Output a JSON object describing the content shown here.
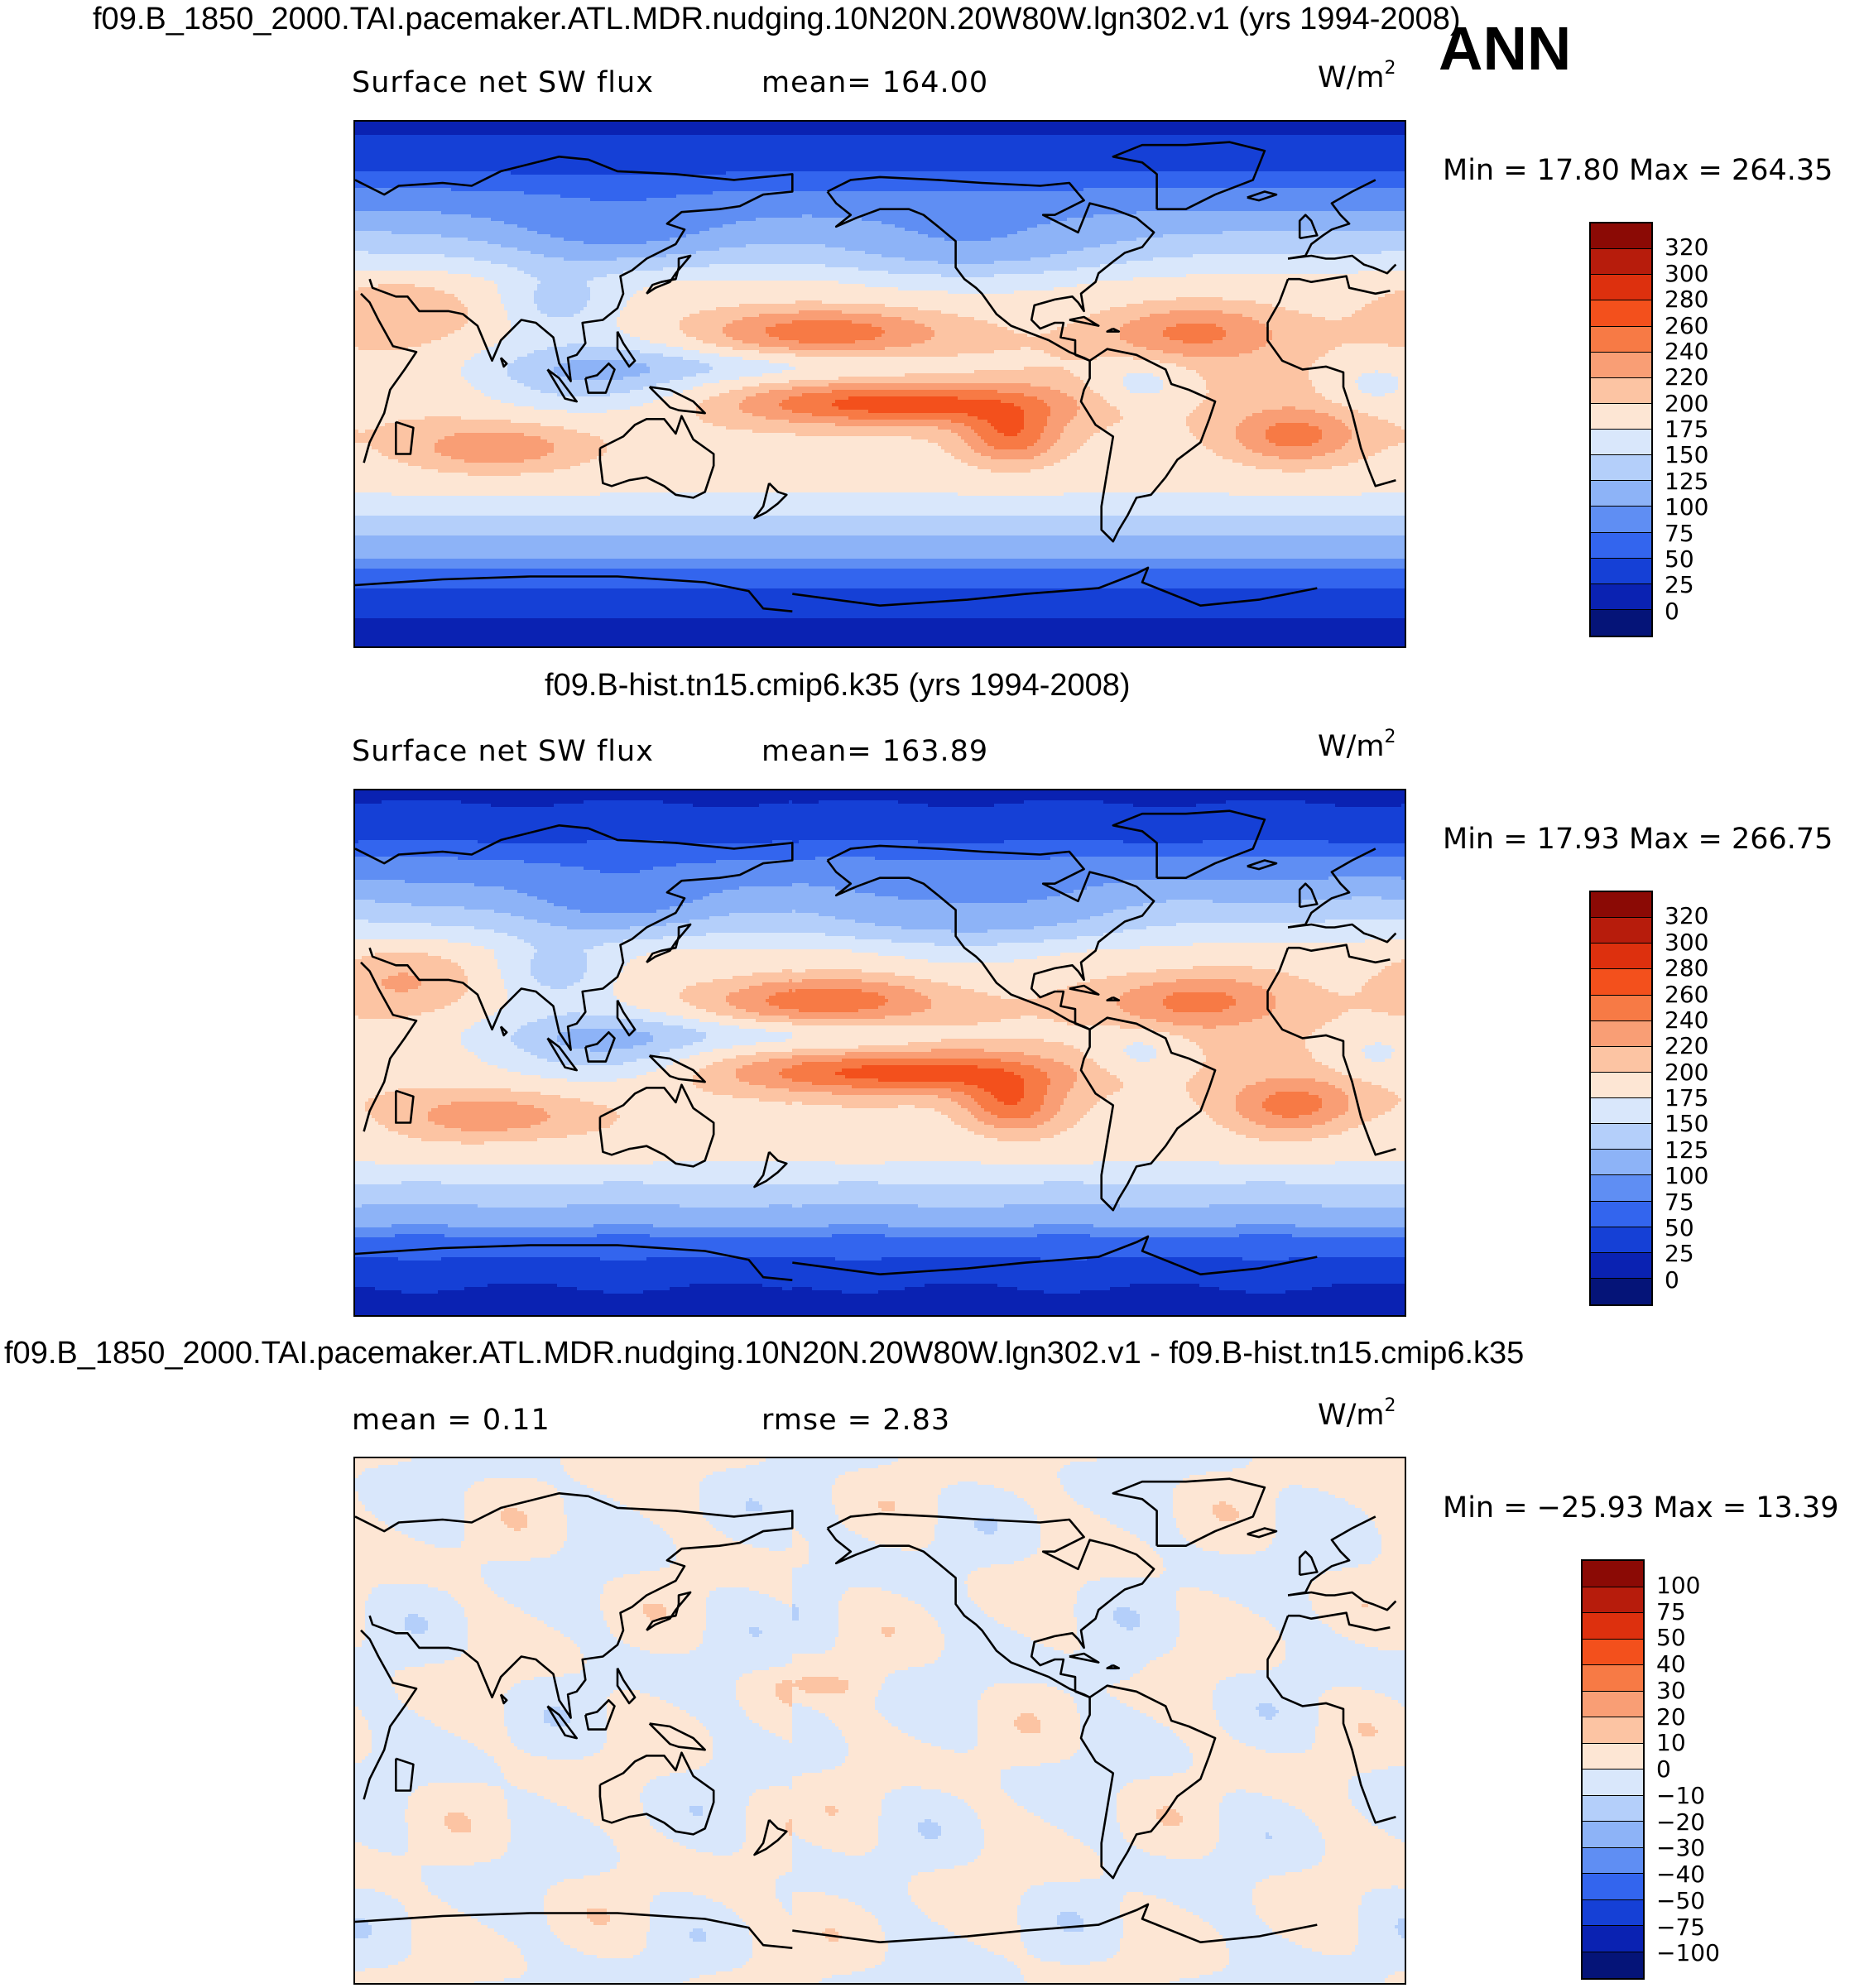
{
  "season": "ANN",
  "chart_data": [
    {
      "type": "heatmap",
      "title": "f09.B_1850_2000.TAI.pacemaker.ATL.MDR.nudging.10N20N.20W80W.lgn302.v1 (yrs 1994-2008)",
      "field": "Surface net SW flux",
      "stat": "mean= 164.00",
      "units_base": "W/m",
      "units_exp": "2",
      "minmax": "Min =   17.80 Max = 264.35",
      "min": 17.8,
      "max": 264.35,
      "mean": 164.0,
      "levels": [
        "320",
        "300",
        "280",
        "260",
        "240",
        "220",
        "200",
        "175",
        "150",
        "125",
        "100",
        "75",
        "50",
        "25",
        "0"
      ],
      "colors": [
        "#8b0a05",
        "#b71c0c",
        "#dd300e",
        "#f3501c",
        "#f77a45",
        "#f99e75",
        "#fcc4a3",
        "#fde6d4",
        "#d9e7fb",
        "#b4cffa",
        "#8db3f7",
        "#5f8ef3",
        "#3365ee",
        "#1540d6",
        "#0a22b2",
        "#051478"
      ]
    },
    {
      "type": "heatmap",
      "title": "f09.B-hist.tn15.cmip6.k35 (yrs 1994-2008)",
      "field": "Surface net SW flux",
      "stat": "mean= 163.89",
      "units_base": "W/m",
      "units_exp": "2",
      "minmax": "Min =   17.93 Max = 266.75",
      "min": 17.93,
      "max": 266.75,
      "mean": 163.89,
      "levels": [
        "320",
        "300",
        "280",
        "260",
        "240",
        "220",
        "200",
        "175",
        "150",
        "125",
        "100",
        "75",
        "50",
        "25",
        "0"
      ],
      "colors": [
        "#8b0a05",
        "#b71c0c",
        "#dd300e",
        "#f3501c",
        "#f77a45",
        "#f99e75",
        "#fcc4a3",
        "#fde6d4",
        "#d9e7fb",
        "#b4cffa",
        "#8db3f7",
        "#5f8ef3",
        "#3365ee",
        "#1540d6",
        "#0a22b2",
        "#051478"
      ]
    },
    {
      "type": "heatmap",
      "title": "f09.B_1850_2000.TAI.pacemaker.ATL.MDR.nudging.10N20N.20W80W.lgn302.v1 - f09.B-hist.tn15.cmip6.k35",
      "field": "mean =    0.11",
      "stat": "rmse =    2.83",
      "units_base": "W/m",
      "units_exp": "2",
      "minmax": "Min = −25.93 Max =   13.39",
      "min": -25.93,
      "max": 13.39,
      "mean": 0.11,
      "rmse": 2.83,
      "levels": [
        "100",
        "75",
        "50",
        "40",
        "30",
        "20",
        "10",
        "0",
        "−10",
        "−20",
        "−30",
        "−40",
        "−50",
        "−75",
        "−100"
      ],
      "colors": [
        "#8b0a05",
        "#b71c0c",
        "#dd300e",
        "#f3501c",
        "#f77a45",
        "#f99e75",
        "#fcc4a3",
        "#fde6d4",
        "#d9e7fb",
        "#b4cffa",
        "#8db3f7",
        "#5f8ef3",
        "#3365ee",
        "#1540d6",
        "#0a22b2",
        "#051478"
      ]
    }
  ]
}
